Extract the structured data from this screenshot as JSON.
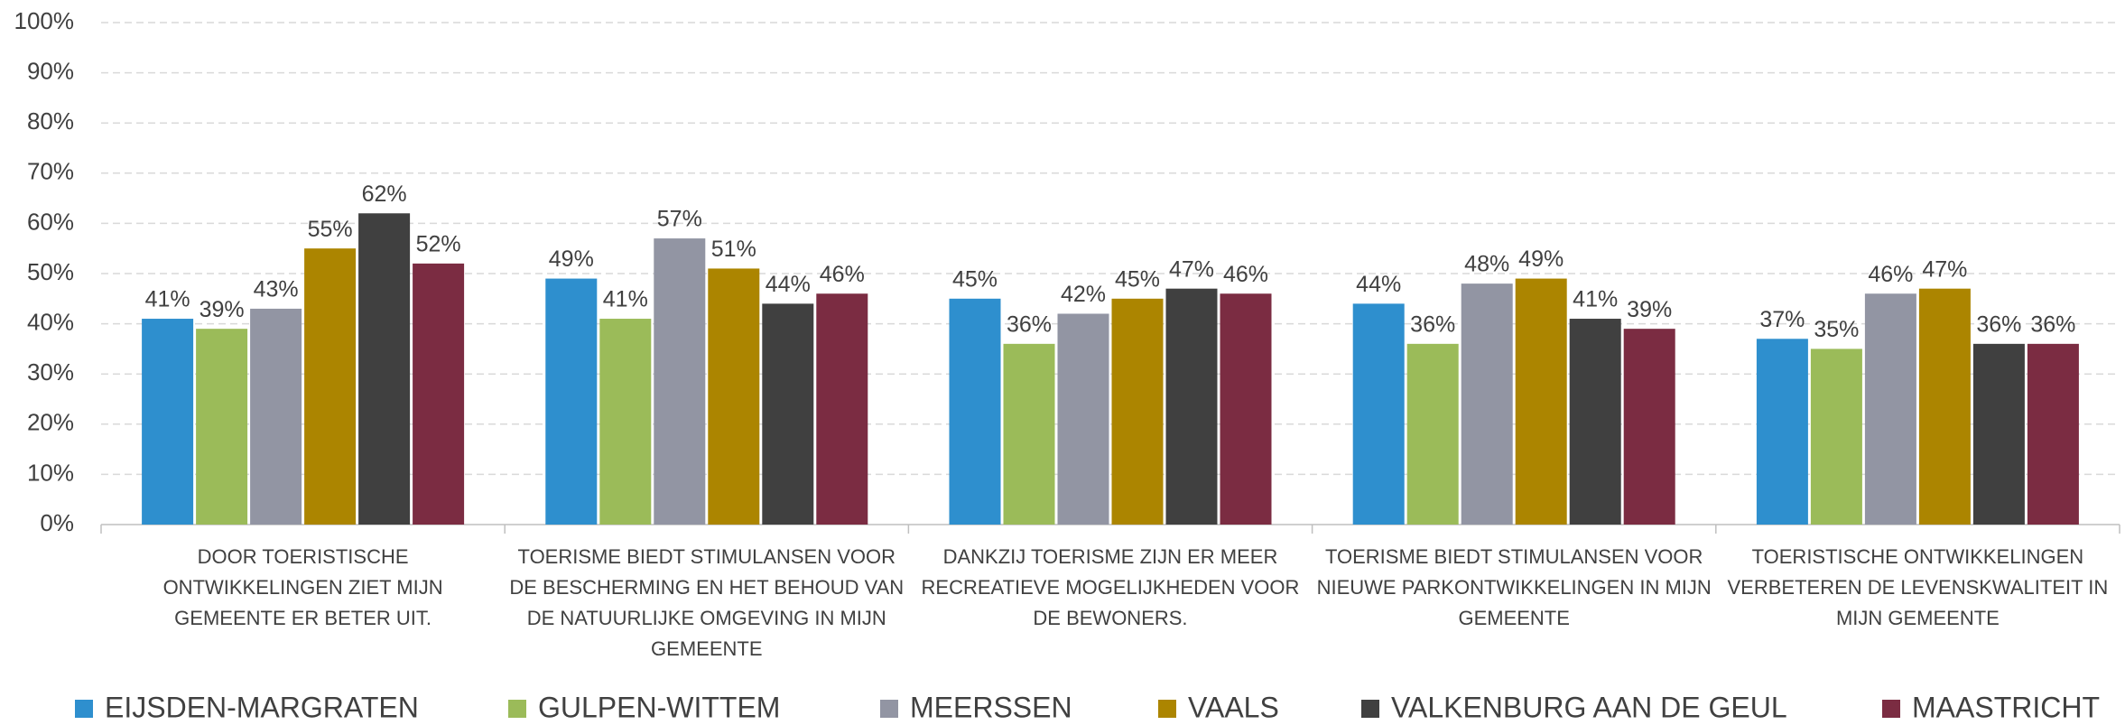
{
  "chart_data": {
    "type": "bar",
    "categories": [
      "DOOR TOERISTISCHE ONTWIKKELINGEN ZIET MIJN GEMEENTE ER BETER UIT.",
      "TOERISME BIEDT STIMULANSEN VOOR DE BESCHERMING EN HET BEHOUD VAN DE NATUURLIJKE OMGEVING IN MIJN GEMEENTE",
      "DANKZIJ TOERISME ZIJN ER MEER RECREATIEVE MOGELIJKHEDEN VOOR DE BEWONERS.",
      "TOERISME BIEDT STIMULANSEN VOOR NIEUWE PARKONTWIKKELINGEN IN MIJN GEMEENTE",
      "TOERISTISCHE ONTWIKKELINGEN VERBETEREN DE LEVENSKWALITEIT IN MIJN GEMEENTE"
    ],
    "series": [
      {
        "name": "EIJSDEN-MARGRATEN",
        "color": "#2E8FCE",
        "values": [
          41,
          49,
          45,
          44,
          37
        ],
        "value_labels": [
          "41%",
          "49%",
          "45%",
          "44%",
          "37%"
        ]
      },
      {
        "name": "GULPEN-WITTEM",
        "color": "#9BBB59",
        "values": [
          39,
          41,
          36,
          36,
          35
        ],
        "value_labels": [
          "39%",
          "41%",
          "36%",
          "36%",
          "35%"
        ]
      },
      {
        "name": "MEERSSEN",
        "color": "#9295A3",
        "values": [
          43,
          57,
          42,
          48,
          46
        ],
        "value_labels": [
          "43%",
          "57%",
          "42%",
          "48%",
          "46%"
        ]
      },
      {
        "name": "VAALS",
        "color": "#AC8500",
        "values": [
          55,
          51,
          45,
          49,
          47
        ],
        "value_labels": [
          "55%",
          "51%",
          "45%",
          "49%",
          "47%"
        ]
      },
      {
        "name": "VALKENBURG AAN DE GEUL",
        "color": "#404040",
        "values": [
          62,
          44,
          47,
          41,
          36
        ],
        "value_labels": [
          "62%",
          "44%",
          "47%",
          "41%",
          "36%"
        ]
      },
      {
        "name": "MAASTRICHT",
        "color": "#7B2C42",
        "values": [
          52,
          46,
          46,
          39,
          36
        ],
        "value_labels": [
          "52%",
          "46%",
          "46%",
          "39%",
          "36%"
        ]
      }
    ],
    "ylim": [
      0,
      100
    ],
    "yticks": [
      {
        "value": 0,
        "label": "0%"
      },
      {
        "value": 10,
        "label": "10%"
      },
      {
        "value": 20,
        "label": "20%"
      },
      {
        "value": 30,
        "label": "30%"
      },
      {
        "value": 40,
        "label": "40%"
      },
      {
        "value": 50,
        "label": "50%"
      },
      {
        "value": 60,
        "label": "60%"
      },
      {
        "value": 70,
        "label": "70%"
      },
      {
        "value": 80,
        "label": "80%"
      },
      {
        "value": 90,
        "label": "90%"
      },
      {
        "value": 100,
        "label": "100%"
      }
    ],
    "grid": true,
    "legend": "bottom"
  }
}
